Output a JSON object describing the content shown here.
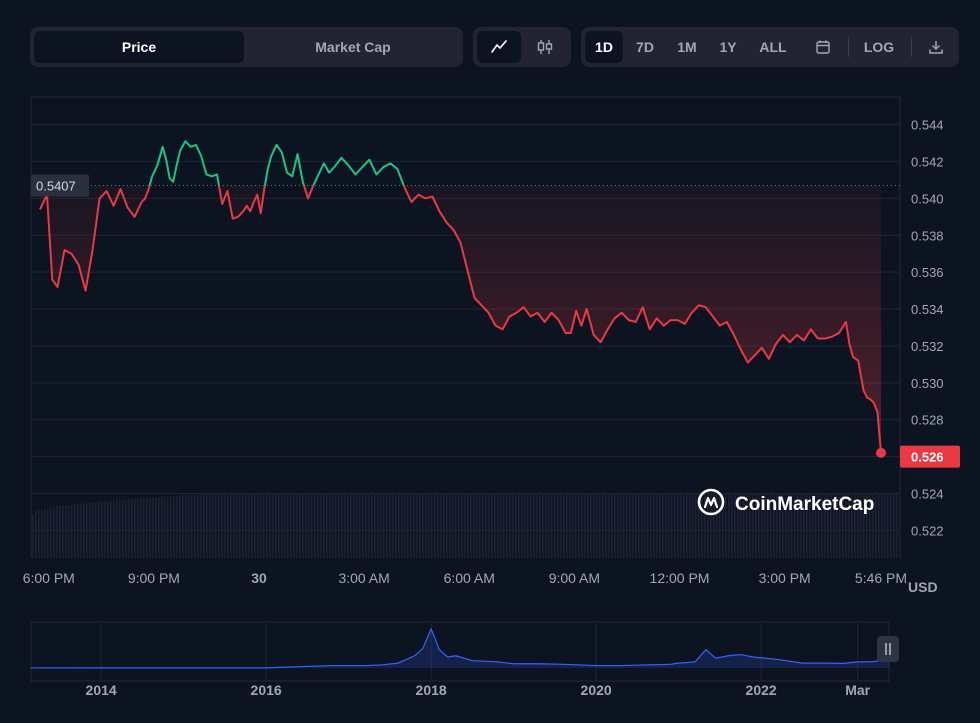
{
  "toolbar": {
    "metric_tabs": [
      {
        "label": "Price",
        "active": true
      },
      {
        "label": "Market Cap",
        "active": false
      }
    ],
    "chart_type_icons": [
      "line-chart-icon",
      "candlestick-icon"
    ],
    "ranges": [
      {
        "label": "1D",
        "active": true
      },
      {
        "label": "7D",
        "active": false
      },
      {
        "label": "1M",
        "active": false
      },
      {
        "label": "1Y",
        "active": false
      },
      {
        "label": "ALL",
        "active": false
      }
    ],
    "calendar_icon": "calendar-icon",
    "log_label": "LOG",
    "download_icon": "download-icon"
  },
  "colors": {
    "background": "#0d1421",
    "up": "#16c784",
    "down": "#ea3943",
    "axis_text": "#a1a7bb",
    "grid": "#1e2433",
    "navigator_line": "#3861fb"
  },
  "chart_data": [
    {
      "type": "line",
      "title": "Price",
      "currency_label": "USD",
      "reference_price": 0.5407,
      "reference_label": "0.5407",
      "current_price": 0.526,
      "current_label": "0.526",
      "ylim": [
        0.5205,
        0.5455
      ],
      "y_ticks": [
        0.522,
        0.524,
        0.526,
        0.528,
        0.53,
        0.532,
        0.534,
        0.536,
        0.538,
        0.54,
        0.542,
        0.544
      ],
      "y_tick_labels": [
        "0.522",
        "0.524",
        "0.526",
        "0.528",
        "0.530",
        "0.532",
        "0.534",
        "0.536",
        "0.538",
        "0.540",
        "0.542",
        "0.544"
      ],
      "x_tick_labels": [
        "6:00 PM",
        "9:00 PM",
        "30",
        "3:00 AM",
        "6:00 AM",
        "9:00 AM",
        "12:00 PM",
        "3:00 PM",
        "5:46 PM"
      ],
      "x_tick_hours": [
        0.25,
        3.25,
        6.25,
        9.25,
        12.25,
        15.25,
        18.25,
        21.25,
        24.0
      ],
      "x_range_hours": [
        0.0,
        24.0
      ],
      "series": [
        {
          "name": "Price",
          "x_hours": [
            0.0,
            0.2,
            0.35,
            0.5,
            0.7,
            0.9,
            1.1,
            1.3,
            1.5,
            1.7,
            1.9,
            2.1,
            2.3,
            2.5,
            2.7,
            2.9,
            3.0,
            3.1,
            3.2,
            3.35,
            3.5,
            3.6,
            3.7,
            3.8,
            3.9,
            4.0,
            4.15,
            4.3,
            4.45,
            4.6,
            4.75,
            4.9,
            5.05,
            5.2,
            5.35,
            5.5,
            5.65,
            5.8,
            5.9,
            6.0,
            6.1,
            6.2,
            6.3,
            6.4,
            6.5,
            6.6,
            6.75,
            6.9,
            7.05,
            7.2,
            7.35,
            7.5,
            7.65,
            7.8,
            7.95,
            8.1,
            8.25,
            8.4,
            8.6,
            8.8,
            9.0,
            9.2,
            9.4,
            9.6,
            9.8,
            10.0,
            10.2,
            10.4,
            10.6,
            10.8,
            11.0,
            11.2,
            11.4,
            11.6,
            11.8,
            12.0,
            12.2,
            12.4,
            12.6,
            12.8,
            13.0,
            13.2,
            13.4,
            13.6,
            13.8,
            14.0,
            14.2,
            14.4,
            14.6,
            14.8,
            15.0,
            15.15,
            15.3,
            15.45,
            15.6,
            15.8,
            16.0,
            16.2,
            16.4,
            16.6,
            16.8,
            17.0,
            17.2,
            17.4,
            17.6,
            17.8,
            18.0,
            18.2,
            18.4,
            18.6,
            18.8,
            19.0,
            19.2,
            19.4,
            19.6,
            19.8,
            20.0,
            20.2,
            20.4,
            20.6,
            20.8,
            21.0,
            21.2,
            21.4,
            21.6,
            21.8,
            22.0,
            22.2,
            22.4,
            22.6,
            22.8,
            23.0,
            23.1,
            23.2,
            23.35,
            23.5,
            23.6,
            23.7,
            23.8,
            23.9,
            24.0
          ],
          "y": [
            0.5394,
            0.5402,
            0.5356,
            0.5352,
            0.5372,
            0.537,
            0.5364,
            0.535,
            0.5372,
            0.54,
            0.5404,
            0.5396,
            0.5405,
            0.5395,
            0.539,
            0.5398,
            0.54,
            0.5405,
            0.5412,
            0.5418,
            0.5428,
            0.5421,
            0.5411,
            0.5409,
            0.5418,
            0.5426,
            0.5431,
            0.5428,
            0.5429,
            0.5423,
            0.5413,
            0.5412,
            0.5413,
            0.5397,
            0.5404,
            0.5389,
            0.539,
            0.5393,
            0.5396,
            0.5393,
            0.5398,
            0.5402,
            0.5392,
            0.5405,
            0.5416,
            0.5423,
            0.5429,
            0.5425,
            0.5414,
            0.5412,
            0.5424,
            0.5409,
            0.54,
            0.5407,
            0.5413,
            0.5419,
            0.5414,
            0.5417,
            0.5422,
            0.5418,
            0.5413,
            0.5417,
            0.5421,
            0.5413,
            0.5417,
            0.5419,
            0.5416,
            0.5406,
            0.5398,
            0.5402,
            0.54,
            0.5401,
            0.5393,
            0.5387,
            0.5383,
            0.5376,
            0.5361,
            0.5346,
            0.5342,
            0.5338,
            0.5331,
            0.5329,
            0.5336,
            0.5338,
            0.5341,
            0.5336,
            0.5338,
            0.5333,
            0.5338,
            0.5334,
            0.5327,
            0.5327,
            0.5339,
            0.5331,
            0.534,
            0.5326,
            0.5322,
            0.5329,
            0.5335,
            0.5338,
            0.5334,
            0.5333,
            0.5341,
            0.5329,
            0.5335,
            0.5331,
            0.5334,
            0.5334,
            0.5332,
            0.5338,
            0.5342,
            0.5341,
            0.5336,
            0.5331,
            0.5333,
            0.5326,
            0.5318,
            0.5311,
            0.5315,
            0.5319,
            0.5313,
            0.5321,
            0.5326,
            0.5322,
            0.5326,
            0.5323,
            0.5329,
            0.5324,
            0.5324,
            0.5325,
            0.5327,
            0.5333,
            0.5321,
            0.5314,
            0.5312,
            0.5296,
            0.5292,
            0.5291,
            0.5289,
            0.5284,
            0.5262
          ]
        }
      ]
    },
    {
      "type": "area",
      "title": "History navigator",
      "x_tick_labels": [
        "2014",
        "2016",
        "2018",
        "2020",
        "2022",
        "Mar"
      ],
      "x_tick_years": [
        2014.0,
        2016.0,
        2018.0,
        2020.0,
        2022.0,
        2023.17
      ],
      "x_range_years": [
        2013.15,
        2023.55
      ],
      "y_range": [
        0.0,
        3.6
      ],
      "series": [
        {
          "name": "Price history",
          "x_years": [
            2013.15,
            2014.0,
            2015.0,
            2016.0,
            2016.8,
            2017.2,
            2017.4,
            2017.6,
            2017.8,
            2017.9,
            2018.0,
            2018.1,
            2018.2,
            2018.3,
            2018.5,
            2018.8,
            2019.0,
            2019.3,
            2019.6,
            2020.0,
            2020.3,
            2020.6,
            2020.9,
            2021.0,
            2021.2,
            2021.33,
            2021.45,
            2021.6,
            2021.75,
            2021.9,
            2022.2,
            2022.5,
            2022.8,
            2023.0,
            2023.17,
            2023.35,
            2023.45,
            2023.55
          ],
          "values": [
            0.005,
            0.01,
            0.01,
            0.01,
            0.2,
            0.2,
            0.25,
            0.4,
            1.0,
            1.6,
            3.2,
            1.5,
            0.9,
            1.0,
            0.6,
            0.5,
            0.35,
            0.35,
            0.3,
            0.2,
            0.2,
            0.25,
            0.3,
            0.4,
            0.5,
            1.5,
            0.8,
            1.0,
            1.1,
            0.9,
            0.7,
            0.4,
            0.4,
            0.38,
            0.5,
            0.52,
            0.6,
            0.526
          ]
        }
      ]
    }
  ],
  "watermark": "CoinMarketCap"
}
